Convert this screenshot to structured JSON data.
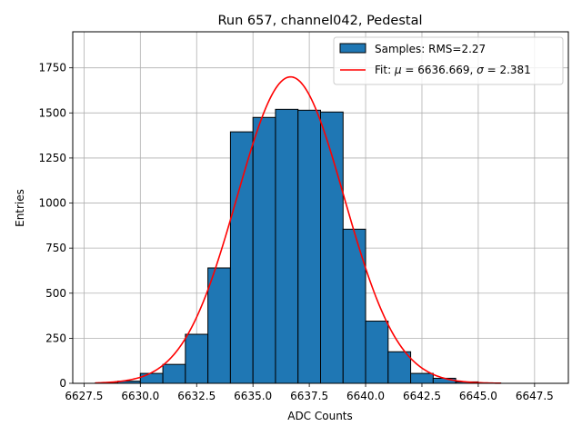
{
  "chart_data": {
    "type": "bar",
    "title": "Run 657, channel042, Pedestal",
    "xlabel": "ADC Counts",
    "ylabel": "Entries",
    "xlim": [
      6627.0,
      6649.0
    ],
    "ylim": [
      0,
      1950
    ],
    "grid": true,
    "x_ticks": [
      6627.5,
      6630.0,
      6632.5,
      6635.0,
      6637.5,
      6640.0,
      6642.5,
      6645.0,
      6647.5
    ],
    "x_tick_labels": [
      "6627.5",
      "6630.0",
      "6632.5",
      "6635.0",
      "6637.5",
      "6640.0",
      "6642.5",
      "6645.0",
      "6647.5"
    ],
    "y_ticks": [
      0,
      250,
      500,
      750,
      1000,
      1250,
      1500,
      1750
    ],
    "y_tick_labels": [
      "0",
      "250",
      "500",
      "750",
      "1000",
      "1250",
      "1500",
      "1750"
    ],
    "bin_width": 1.0,
    "bin_lefts": [
      6628,
      6629,
      6630,
      6631,
      6632,
      6633,
      6634,
      6635,
      6636,
      6637,
      6638,
      6639,
      6640,
      6641,
      6642,
      6643,
      6644,
      6645,
      6646,
      6647
    ],
    "values": [
      2,
      12,
      55,
      105,
      272,
      640,
      1395,
      1475,
      1520,
      1515,
      1505,
      855,
      345,
      175,
      55,
      28,
      8,
      2,
      0,
      0
    ],
    "series": [
      {
        "name": "Samples: RMS=2.27",
        "kind": "histogram",
        "color": "#1f77b4",
        "edge": "#000000"
      },
      {
        "name": "Fit: μ = 6636.669, σ = 2.381",
        "kind": "line",
        "color": "#ff0000",
        "mu": 6636.669,
        "sigma": 2.381,
        "amplitude": 1700,
        "x_range": [
          6628.0,
          6646.0
        ]
      }
    ],
    "legend": {
      "position": "top-right",
      "entries": [
        {
          "label": "Samples: RMS=2.27",
          "swatch": "patch"
        },
        {
          "label_prefix": "Fit: ",
          "mu_symbol": "μ",
          "mu_text": " = 6636.669, ",
          "sigma_symbol": "σ",
          "sigma_text": " = 2.381",
          "swatch": "line"
        }
      ]
    }
  }
}
